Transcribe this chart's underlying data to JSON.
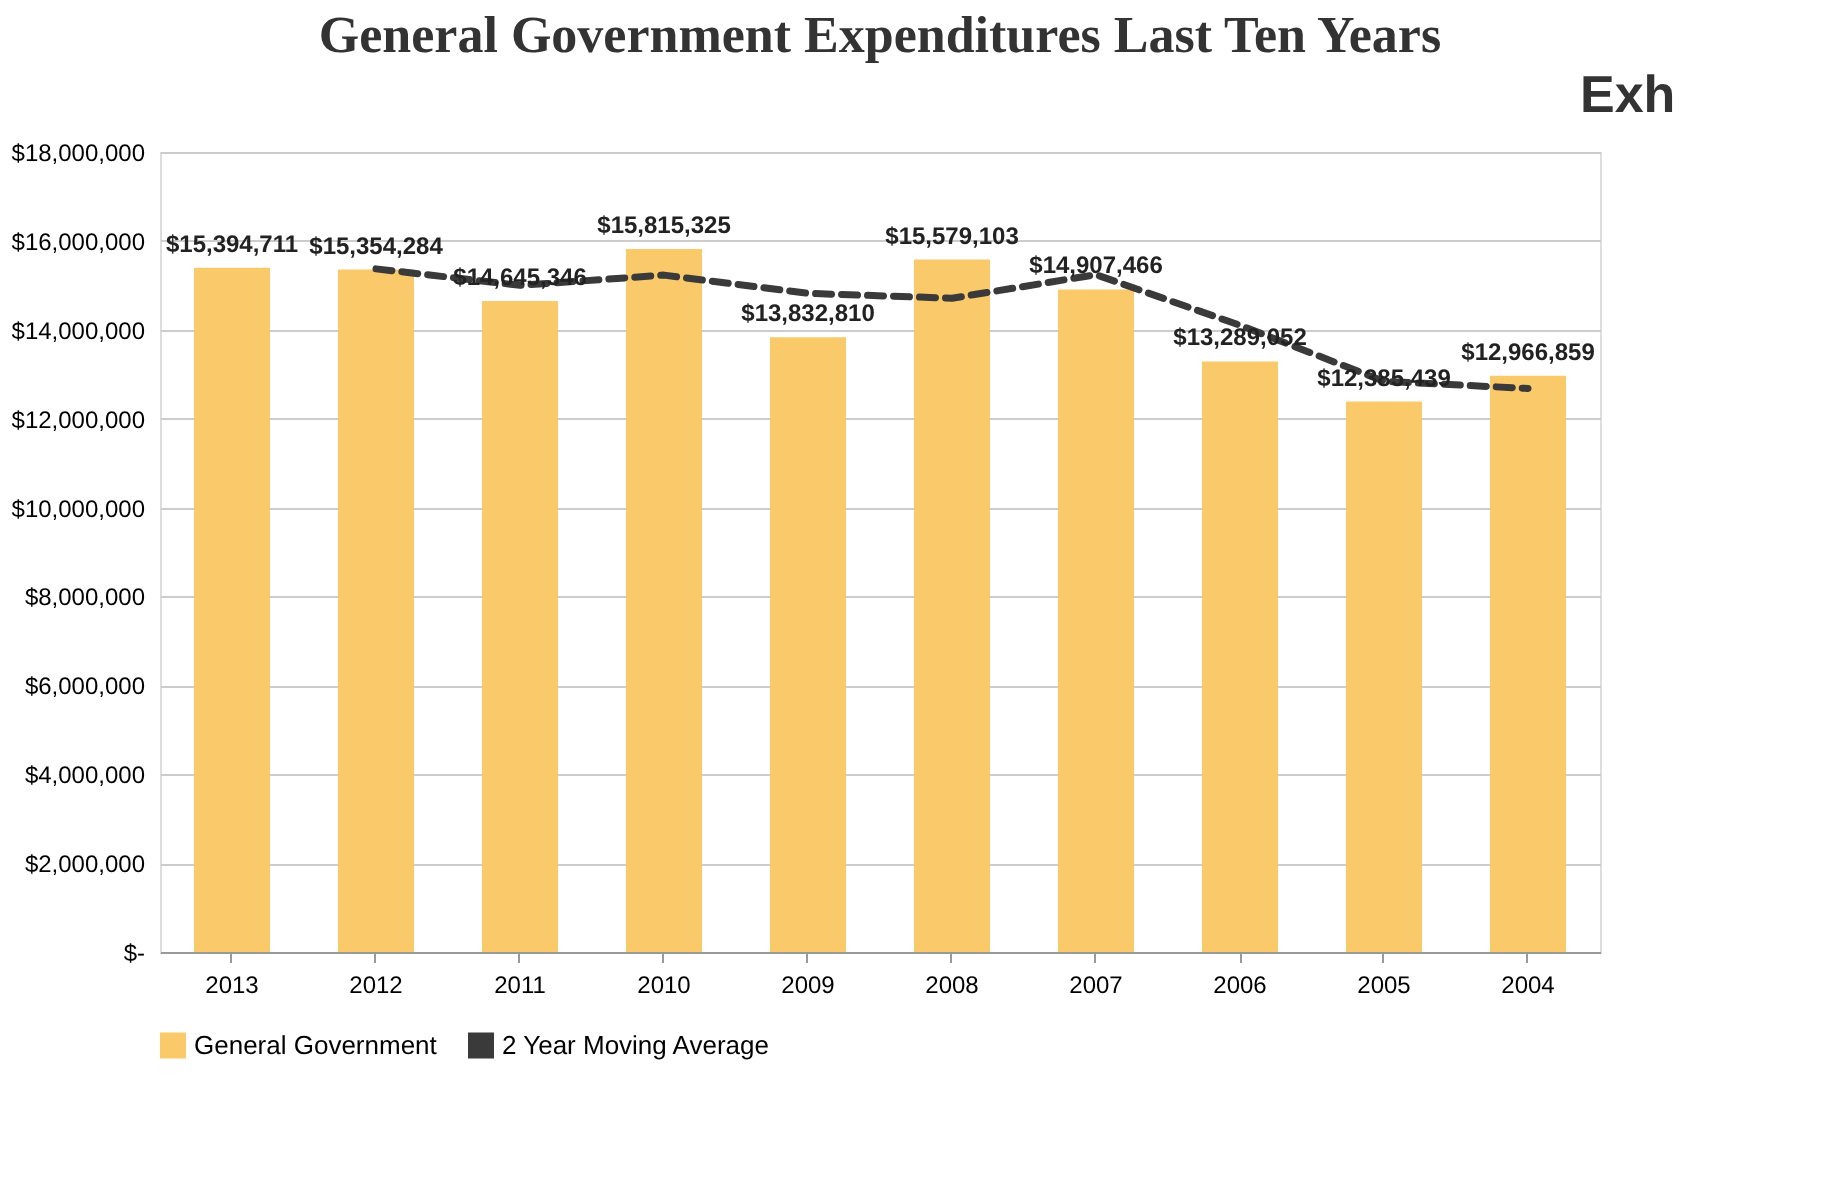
{
  "chart_data": {
    "type": "bar",
    "title": "General Government Expenditures  Last Ten Years",
    "categories": [
      "2013",
      "2012",
      "2011",
      "2010",
      "2009",
      "2008",
      "2007",
      "2006",
      "2005",
      "2004"
    ],
    "series": [
      {
        "name": "General Government",
        "color": "#f9c96a",
        "values": [
          15394711,
          15354284,
          14645346,
          15815325,
          13832810,
          15579103,
          14907466,
          13289052,
          12385439,
          12966859
        ],
        "value_labels": [
          "$15,394,711",
          "$15,354,284",
          "$14,645,346",
          "$15,815,325",
          "$13,832,810",
          "$15,579,103",
          "$14,907,466",
          "$13,289,052",
          "$12,385,439",
          "$12,966,859"
        ]
      },
      {
        "name": "2 Year Moving Average",
        "type": "line",
        "color": "#3a3a3a",
        "line_style": "dashed",
        "values": [
          null,
          15370000,
          15000000,
          15230000,
          14820000,
          14710000,
          15240000,
          14100000,
          12840000,
          12680000
        ]
      }
    ],
    "ylim": [
      0,
      18000000
    ],
    "yticks": [
      {
        "value": 0,
        "label": "$-"
      },
      {
        "value": 2000000,
        "label": "$2,000,000"
      },
      {
        "value": 4000000,
        "label": "$4,000,000"
      },
      {
        "value": 6000000,
        "label": "$6,000,000"
      },
      {
        "value": 8000000,
        "label": "$8,000,000"
      },
      {
        "value": 10000000,
        "label": "$10,000,000"
      },
      {
        "value": 12000000,
        "label": "$12,000,000"
      },
      {
        "value": 14000000,
        "label": "$14,000,000"
      },
      {
        "value": 16000000,
        "label": "$16,000,000"
      },
      {
        "value": 18000000,
        "label": "$18,000,000"
      }
    ],
    "grid": "y",
    "legend": "bottom",
    "annotations": [
      "Exh"
    ]
  }
}
